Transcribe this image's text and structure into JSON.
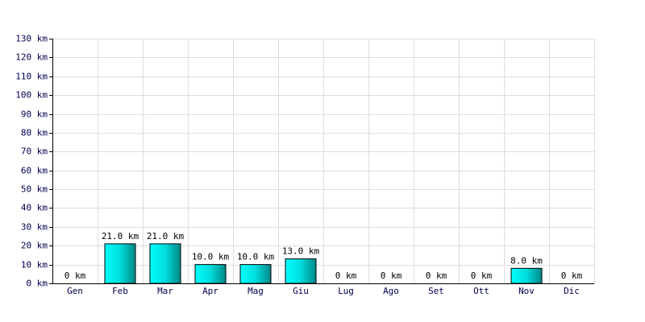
{
  "chart_data": {
    "type": "bar",
    "categories": [
      "Gen",
      "Feb",
      "Mar",
      "Apr",
      "Mag",
      "Giu",
      "Lug",
      "Ago",
      "Set",
      "Ott",
      "Nov",
      "Dic"
    ],
    "values": [
      0,
      21,
      21,
      10,
      10,
      13,
      0,
      0,
      0,
      0,
      8,
      0
    ],
    "value_labels": [
      "0 km",
      "21.0 km",
      "21.0 km",
      "10.0 km",
      "10.0 km",
      "13.0 km",
      "0 km",
      "0 km",
      "0 km",
      "0 km",
      "8.0 km",
      "0 km"
    ],
    "color": "#00dcdc",
    "ylim": [
      0,
      130
    ],
    "yticks": [
      {
        "value": 0,
        "label": "0 km"
      },
      {
        "value": 10,
        "label": "10 km"
      },
      {
        "value": 20,
        "label": "20 km"
      },
      {
        "value": 30,
        "label": "30 km"
      },
      {
        "value": 40,
        "label": "40 km"
      },
      {
        "value": 50,
        "label": "50 km"
      },
      {
        "value": 60,
        "label": "60 km"
      },
      {
        "value": 70,
        "label": "70 km"
      },
      {
        "value": 80,
        "label": "80 km"
      },
      {
        "value": 90,
        "label": "90 km"
      },
      {
        "value": 100,
        "label": "100 km"
      },
      {
        "value": 110,
        "label": "110 km"
      },
      {
        "value": 120,
        "label": "120 km"
      },
      {
        "value": 130,
        "label": "130 km"
      }
    ],
    "grid": true
  }
}
